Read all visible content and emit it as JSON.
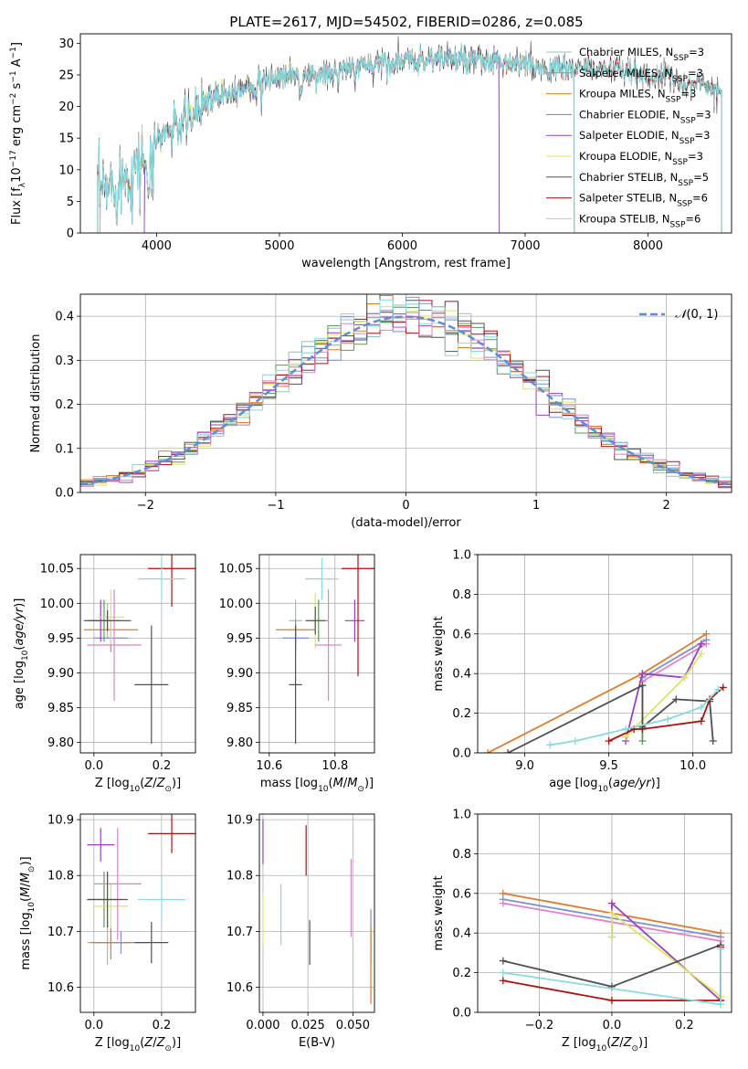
{
  "figure_title": "PLATE=2617, MJD=54502, FIBERID=0286, z=0.085",
  "colors": {
    "c_miles": "#8fc6c0",
    "s_miles": "#7e8fd6",
    "k_miles": "#e07b2a",
    "c_elodie": "#5a9a5a",
    "s_elodie": "#9b3fc0",
    "k_elodie": "#d8ea5a",
    "c_stelib": "#505050",
    "s_stelib": "#b01010",
    "k_stelib": "#86dcdc",
    "pink": "#e27fc9",
    "gauss": "#5b8ee0",
    "grid": "#b0b0b0"
  },
  "chart_data": [
    {
      "type": "line",
      "title": "PLATE=2617, MJD=54502, FIBERID=0286, z=0.085",
      "xlabel": "wavelength [Angstrom, rest frame]",
      "ylabel": "Flux [f_λ 10^-17 erg cm^-2 s^-1 A^-1]",
      "xlim": [
        3380,
        8680
      ],
      "ylim": [
        0,
        31.5
      ],
      "xticks": [
        4000,
        5000,
        6000,
        7000,
        8000
      ],
      "yticks": [
        0,
        5,
        10,
        15,
        20,
        25,
        30
      ],
      "grid": false,
      "legend": "upper right",
      "series": [
        {
          "name": "Chabrier MILES, N_SSP=3"
        },
        {
          "name": "Salpeter MILES, N_SSP=3"
        },
        {
          "name": "Kroupa MILES, N_SSP=3"
        },
        {
          "name": "Chabrier ELODIE, N_SSP=3"
        },
        {
          "name": "Salpeter ELODIE, N_SSP=3"
        },
        {
          "name": "Kroupa ELODIE, N_SSP=3"
        },
        {
          "name": "Chabrier STELIB, N_SSP=5"
        },
        {
          "name": "Salpeter STELIB, N_SSP=6"
        },
        {
          "name": "Kroupa STELIB, N_SSP=6"
        }
      ],
      "continuum": {
        "x": [
          3500,
          3600,
          3700,
          3800,
          3900,
          4000,
          4100,
          4200,
          4300,
          4400,
          4500,
          4600,
          4700,
          4800,
          4900,
          5000,
          5200,
          5400,
          5600,
          5800,
          6000,
          6200,
          6400,
          6600,
          6800,
          7000,
          7200,
          7400,
          7600,
          7800,
          8000,
          8200,
          8400,
          8600
        ],
        "y": [
          6,
          7,
          8.5,
          9.5,
          12,
          15,
          16,
          17,
          18.5,
          21,
          22,
          22.5,
          23,
          23.5,
          24,
          25,
          25,
          25,
          26,
          27,
          27,
          27.5,
          27.5,
          27,
          27,
          26.5,
          26,
          26,
          26,
          25.5,
          25,
          24.5,
          23.5,
          22.5
        ]
      }
    },
    {
      "type": "line",
      "xlabel": "(data-model)/error",
      "ylabel": "Normed distribution",
      "xlim": [
        -2.5,
        2.5
      ],
      "ylim": [
        0,
        0.45
      ],
      "xticks": [
        -2,
        -1,
        0,
        1,
        2
      ],
      "yticks": [
        0.0,
        0.1,
        0.2,
        0.3,
        0.4
      ],
      "grid": true,
      "legend": "upper right",
      "gaussian": {
        "name": "N(0,1)",
        "mean": 0,
        "sd": 1
      },
      "histogram": {
        "bin_width": 0.1,
        "n_series": 9
      }
    },
    {
      "type": "scatter",
      "xlabel": "Z [log10(Z/Z_sun)]",
      "ylabel": "age [log10(age/yr)]",
      "xlim": [
        -0.04,
        0.3
      ],
      "ylim": [
        9.785,
        10.07
      ],
      "xticks": [
        0.0,
        0.2
      ],
      "yticks": [
        9.8,
        9.85,
        9.9,
        9.95,
        10.0,
        10.05
      ],
      "grid": true,
      "points": [
        {
          "series": "c_miles",
          "x": 0.04,
          "y": 9.975,
          "xerr": 0.06,
          "yerr": 0.025
        },
        {
          "series": "s_miles",
          "x": 0.05,
          "y": 9.95,
          "xerr": 0.05,
          "yerr": 0.02
        },
        {
          "series": "k_miles",
          "x": 0.05,
          "y": 9.962,
          "xerr": 0.08,
          "yerr": 0.015
        },
        {
          "series": "c_elodie",
          "x": 0.03,
          "y": 9.975,
          "xerr": 0.05,
          "yerr": 0.03
        },
        {
          "series": "s_elodie",
          "x": 0.02,
          "y": 9.975,
          "xerr": 0.03,
          "yerr": 0.03
        },
        {
          "series": "k_elodie",
          "x": 0.05,
          "y": 9.98,
          "xerr": 0.04,
          "yerr": 0.04
        },
        {
          "series": "c_stelib",
          "x": 0.17,
          "y": 9.883,
          "xerr": 0.05,
          "yerr": 0.085
        },
        {
          "series": "s_stelib",
          "x": 0.23,
          "y": 10.05,
          "xerr": 0.07,
          "yerr": 0.055
        },
        {
          "series": "k_stelib",
          "x": 0.2,
          "y": 10.035,
          "xerr": 0.07,
          "yerr": 0.03
        },
        {
          "series": "pink",
          "x": 0.06,
          "y": 9.94,
          "xerr": 0.08,
          "yerr": 0.08
        },
        {
          "series": "c_stelib",
          "x": 0.04,
          "y": 9.975,
          "xerr": 0.07,
          "yerr": 0.015
        }
      ]
    },
    {
      "type": "scatter",
      "xlabel": "mass [log10(M/M_sun)]",
      "ylabel": "",
      "xlim": [
        10.57,
        10.92
      ],
      "ylim": [
        9.785,
        10.07
      ],
      "xticks": [
        10.6,
        10.8
      ],
      "yticks": [
        9.8,
        9.85,
        9.9,
        9.95,
        10.0,
        10.05
      ],
      "grid": true,
      "points": [
        {
          "series": "c_miles",
          "x": 10.68,
          "y": 9.975,
          "xerr": 0.02,
          "yerr": 0.03
        },
        {
          "series": "s_miles",
          "x": 10.68,
          "y": 9.95,
          "xerr": 0.04,
          "yerr": 0.02
        },
        {
          "series": "k_miles",
          "x": 10.68,
          "y": 9.962,
          "xerr": 0.06,
          "yerr": 0.015
        },
        {
          "series": "c_elodie",
          "x": 10.75,
          "y": 9.975,
          "xerr": 0.03,
          "yerr": 0.03
        },
        {
          "series": "s_elodie",
          "x": 10.86,
          "y": 9.975,
          "xerr": 0.03,
          "yerr": 0.03
        },
        {
          "series": "k_elodie",
          "x": 10.74,
          "y": 9.975,
          "xerr": 0.03,
          "yerr": 0.04
        },
        {
          "series": "c_stelib",
          "x": 10.68,
          "y": 9.883,
          "xerr": 0.02,
          "yerr": 0.085
        },
        {
          "series": "s_stelib",
          "x": 10.87,
          "y": 10.05,
          "xerr": 0.05,
          "yerr": 0.155
        },
        {
          "series": "k_stelib",
          "x": 10.76,
          "y": 10.035,
          "xerr": 0.05,
          "yerr": 0.03
        },
        {
          "series": "pink",
          "x": 10.78,
          "y": 9.94,
          "xerr": 0.04,
          "yerr": 0.08
        },
        {
          "series": "c_stelib",
          "x": 10.74,
          "y": 9.975,
          "xerr": 0.03,
          "yerr": 0.02
        }
      ]
    },
    {
      "type": "line",
      "xlabel": "age [log10(age/yr)]",
      "ylabel": "mass weight",
      "xlim": [
        8.72,
        10.23
      ],
      "ylim": [
        0,
        1.0
      ],
      "xticks": [
        9.0,
        9.5,
        10.0
      ],
      "yticks": [
        0.0,
        0.2,
        0.4,
        0.6,
        0.8,
        1.0
      ],
      "grid": true,
      "series": [
        {
          "color": "k_miles",
          "x": [
            8.78,
            9.7,
            10.08
          ],
          "y": [
            0.0,
            0.4,
            0.6
          ]
        },
        {
          "color": "s_miles",
          "x": [
            9.7,
            10.08
          ],
          "y": [
            0.38,
            0.57
          ]
        },
        {
          "color": "pink",
          "x": [
            9.7,
            10.08
          ],
          "y": [
            0.36,
            0.55
          ]
        },
        {
          "color": "s_elodie",
          "x": [
            9.6,
            9.7,
            9.95,
            10.05
          ],
          "y": [
            0.06,
            0.4,
            0.38,
            0.55
          ]
        },
        {
          "color": "k_elodie",
          "x": [
            9.6,
            9.95,
            10.05
          ],
          "y": [
            0.08,
            0.38,
            0.5
          ]
        },
        {
          "color": "c_elodie",
          "x": [
            9.7,
            9.7
          ],
          "y": [
            0.06,
            0.34
          ]
        },
        {
          "color": "c_stelib",
          "x": [
            8.9,
            9.7,
            9.7,
            9.9,
            10.1,
            10.12
          ],
          "y": [
            0.0,
            0.34,
            0.13,
            0.27,
            0.26,
            0.06
          ]
        },
        {
          "color": "s_stelib",
          "x": [
            9.5,
            9.65,
            9.7,
            10.05,
            10.1,
            10.18
          ],
          "y": [
            0.06,
            0.12,
            0.12,
            0.16,
            0.27,
            0.33
          ]
        },
        {
          "color": "k_stelib",
          "x": [
            9.15,
            9.3,
            9.6,
            9.85,
            10.05,
            10.15
          ],
          "y": [
            0.04,
            0.06,
            0.12,
            0.17,
            0.23,
            0.32
          ]
        }
      ]
    },
    {
      "type": "scatter",
      "xlabel": "Z [log10(Z/Z_sun)]",
      "ylabel": "mass [log10(M/M_sun)]",
      "xlim": [
        -0.04,
        0.3
      ],
      "ylim": [
        10.555,
        10.91
      ],
      "xticks": [
        0.0,
        0.2
      ],
      "yticks": [
        10.6,
        10.7,
        10.8,
        10.9
      ],
      "grid": true,
      "points": [
        {
          "series": "c_miles",
          "x": 0.04,
          "y": 10.68,
          "xerr": 0.06,
          "yerr": 0.04
        },
        {
          "series": "s_miles",
          "x": 0.08,
          "y": 10.68,
          "xerr": 0.08,
          "yerr": 0.02
        },
        {
          "series": "k_miles",
          "x": 0.05,
          "y": 10.68,
          "xerr": 0.06,
          "yerr": 0.03
        },
        {
          "series": "c_elodie",
          "x": 0.03,
          "y": 10.757,
          "xerr": 0.05,
          "yerr": 0.05
        },
        {
          "series": "s_elodie",
          "x": 0.02,
          "y": 10.855,
          "xerr": 0.04,
          "yerr": 0.03
        },
        {
          "series": "k_elodie",
          "x": 0.05,
          "y": 10.745,
          "xerr": 0.05,
          "yerr": 0.04
        },
        {
          "series": "c_stelib",
          "x": 0.17,
          "y": 10.68,
          "xerr": 0.05,
          "yerr": 0.037
        },
        {
          "series": "s_stelib",
          "x": 0.23,
          "y": 10.875,
          "xerr": 0.07,
          "yerr": 0.035
        },
        {
          "series": "k_stelib",
          "x": 0.2,
          "y": 10.757,
          "xerr": 0.07,
          "yerr": 0.04
        },
        {
          "series": "pink",
          "x": 0.07,
          "y": 10.785,
          "xerr": 0.07,
          "yerr": 0.1
        },
        {
          "series": "c_stelib",
          "x": 0.04,
          "y": 10.757,
          "xerr": 0.06,
          "yerr": 0.05
        }
      ]
    },
    {
      "type": "scatter",
      "xlabel": "E(B-V)",
      "ylabel": "",
      "xlim": [
        -0.002,
        0.062
      ],
      "ylim": [
        10.555,
        10.91
      ],
      "xticks": [
        0.0,
        0.025,
        0.05
      ],
      "yticks": [
        10.6,
        10.7,
        10.8,
        10.9
      ],
      "grid": true,
      "points": [
        {
          "series": "s_elodie",
          "x": 0.0,
          "y": 10.86,
          "xerr": 0,
          "yerr": 0.04
        },
        {
          "series": "k_elodie",
          "x": 0.0,
          "y": 10.72,
          "xerr": 0,
          "yerr": 0.045
        },
        {
          "series": "k_stelib",
          "x": 0.01,
          "y": 10.73,
          "xerr": 0,
          "yerr": 0.055
        },
        {
          "series": "c_stelib",
          "x": 0.026,
          "y": 10.68,
          "xerr": 0,
          "yerr": 0.04
        },
        {
          "series": "s_stelib",
          "x": 0.024,
          "y": 10.845,
          "xerr": 0,
          "yerr": 0.045
        },
        {
          "series": "pink",
          "x": 0.049,
          "y": 10.76,
          "xerr": 0,
          "yerr": 0.07
        },
        {
          "series": "s_miles",
          "x": 0.06,
          "y": 10.69,
          "xerr": 0,
          "yerr": 0.05
        },
        {
          "series": "k_miles",
          "x": 0.06,
          "y": 10.64,
          "xerr": 0,
          "yerr": 0.07
        }
      ]
    },
    {
      "type": "line",
      "xlabel": "Z [log10(Z/Z_sun)]",
      "ylabel": "mass weight",
      "xlim": [
        -0.37,
        0.33
      ],
      "ylim": [
        0,
        1.0
      ],
      "xticks": [
        -0.2,
        0.0,
        0.2
      ],
      "yticks": [
        0.0,
        0.2,
        0.4,
        0.6,
        0.8,
        1.0
      ],
      "grid": true,
      "series": [
        {
          "color": "k_miles",
          "x": [
            -0.3,
            0.3
          ],
          "y": [
            0.6,
            0.4
          ]
        },
        {
          "color": "s_miles",
          "x": [
            -0.3,
            0.3
          ],
          "y": [
            0.57,
            0.38
          ]
        },
        {
          "color": "pink",
          "x": [
            -0.3,
            0.3
          ],
          "y": [
            0.55,
            0.36
          ]
        },
        {
          "color": "s_elodie",
          "x": [
            0.0,
            0.0,
            0.3
          ],
          "y": [
            0.38,
            0.55,
            0.06
          ]
        },
        {
          "color": "k_elodie",
          "x": [
            0.0,
            0.0,
            0.3
          ],
          "y": [
            0.38,
            0.5,
            0.08
          ]
        },
        {
          "color": "c_stelib",
          "x": [
            -0.3,
            0.0,
            0.3,
            0.3
          ],
          "y": [
            0.26,
            0.13,
            0.34,
            0.06
          ]
        },
        {
          "color": "s_stelib",
          "x": [
            -0.3,
            0.0,
            0.3,
            0.3
          ],
          "y": [
            0.16,
            0.06,
            0.06,
            0.33
          ]
        },
        {
          "color": "k_stelib",
          "x": [
            -0.3,
            0.3,
            0.3
          ],
          "y": [
            0.2,
            0.04,
            0.32
          ]
        }
      ]
    }
  ]
}
